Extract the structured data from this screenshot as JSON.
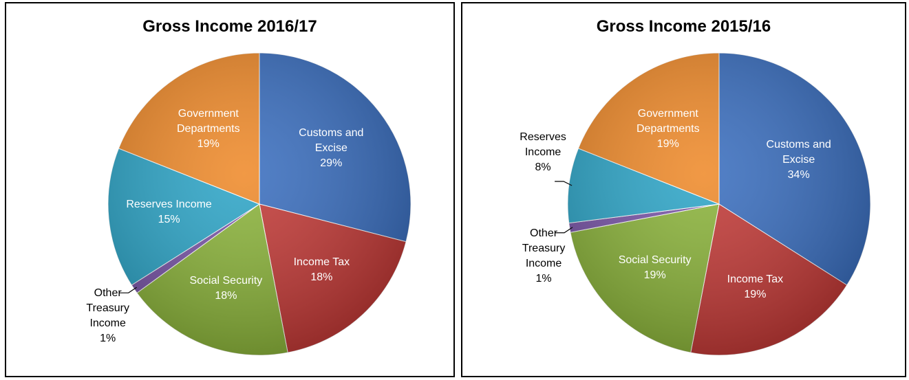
{
  "chart_data": [
    {
      "type": "pie",
      "title": "Gross Income 2016/17",
      "categories": [
        "Customs and Excise",
        "Income Tax",
        "Social Security",
        "Other Treasury Income",
        "Reserves Income",
        "Government Departments"
      ],
      "values": [
        29,
        18,
        18,
        1,
        15,
        19
      ],
      "value_labels": [
        "29%",
        "18%",
        "18%",
        "1%",
        "15%",
        "19%"
      ],
      "colors": [
        "#3b6fbf",
        "#c23b38",
        "#8cb43c",
        "#7a56a8",
        "#2fa6c8",
        "#ef8b2c"
      ]
    },
    {
      "type": "pie",
      "title": "Gross Income 2015/16",
      "categories": [
        "Customs and Excise",
        "Income Tax",
        "Social Security",
        "Other Treasury Income",
        "Reserves Income",
        "Government Departments"
      ],
      "values": [
        34,
        19,
        19,
        1,
        8,
        19
      ],
      "value_labels": [
        "34%",
        "19%",
        "19%",
        "1%",
        "8%",
        "19%"
      ],
      "colors": [
        "#3b6fbf",
        "#c23b38",
        "#8cb43c",
        "#7a56a8",
        "#2fa6c8",
        "#ef8b2c"
      ]
    }
  ]
}
